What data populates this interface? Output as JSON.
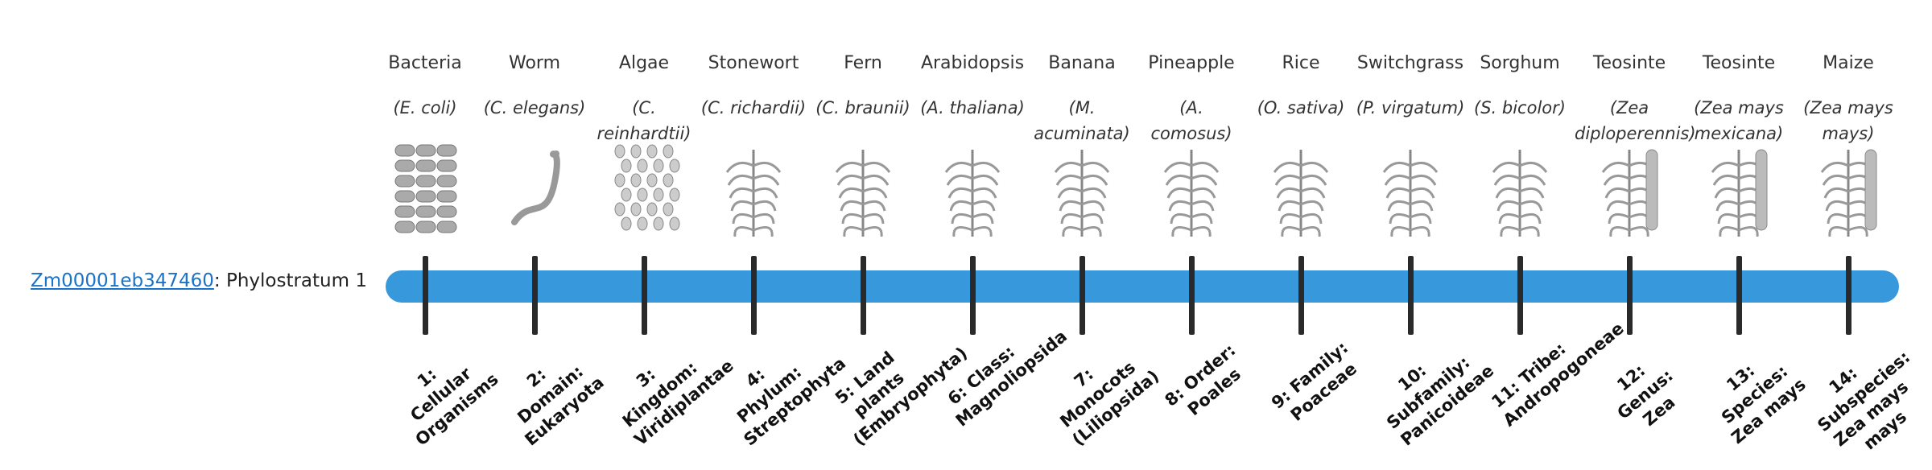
{
  "gene_id": "Zm00001eb347460",
  "gene_label": ": Phylostratum 1",
  "organisms": [
    {
      "common": "Bacteria",
      "species": "(E. coli)",
      "stratum": "1: Cellular Organisms"
    },
    {
      "common": "Worm",
      "species": "(C. elegans)",
      "stratum": "2: Domain: Eukaryota"
    },
    {
      "common": "Algae",
      "species": "(C. reinhardtii)",
      "stratum": "3: Kingdom: Viridiplantae"
    },
    {
      "common": "Stonewort",
      "species": "(C. richardii)",
      "stratum": "4: Phylum: Streptophyta"
    },
    {
      "common": "Fern",
      "species": "(C. braunii)",
      "stratum": "5: Land plants (Embryophyta)"
    },
    {
      "common": "Arabidopsis",
      "species": "(A. thaliana)",
      "stratum": "6: Class: Magnoliopsida"
    },
    {
      "common": "Banana",
      "species": "(M. acuminata)",
      "stratum": "7: Monocots (Liliopsida)"
    },
    {
      "common": "Pineapple",
      "species": "(A. comosus)",
      "stratum": "8: Order: Poales"
    },
    {
      "common": "Rice",
      "species": "(O. sativa)",
      "stratum": "9: Family: Poaceae"
    },
    {
      "common": "Switchgrass",
      "species": "(P. virgatum)",
      "stratum": "10: Subfamily: Panicoideae"
    },
    {
      "common": "Sorghum",
      "species": "(S. bicolor)",
      "stratum": "11: Tribe: Andropogoneae"
    },
    {
      "common": "Teosinte",
      "species": "(Zea diploperennis)",
      "stratum": "12: Genus: Zea"
    },
    {
      "common": "Teosinte",
      "species": "(Zea mays mexicana)",
      "stratum": "13: Species: Zea mays"
    },
    {
      "common": "Maize",
      "species": "(Zea mays mays)",
      "stratum": "14: Subspecies: Zea mays mays"
    }
  ]
}
